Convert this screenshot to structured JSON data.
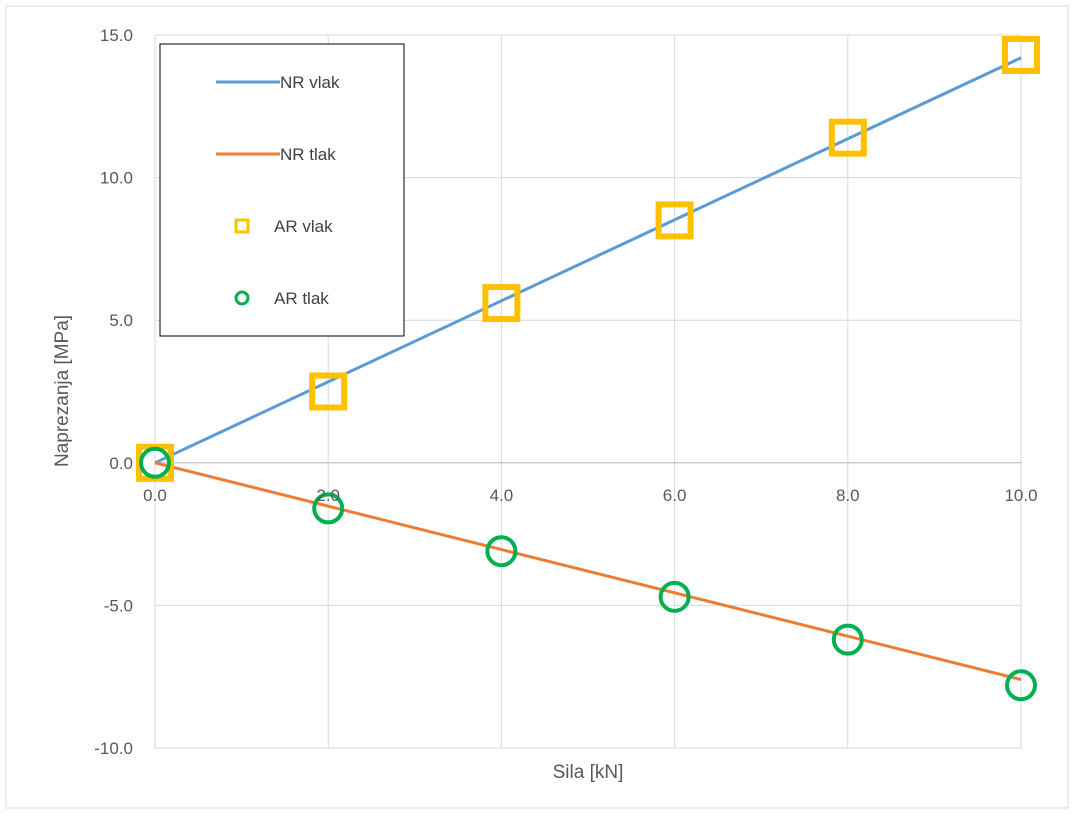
{
  "chart_data": {
    "type": "line",
    "xlabel": "Sila [kN]",
    "ylabel": "Naprezanja  [MPa]",
    "xlim": [
      0,
      10
    ],
    "ylim": [
      -10,
      15
    ],
    "x_ticks": [
      "0.0",
      "2.0",
      "4.0",
      "6.0",
      "8.0",
      "10.0"
    ],
    "y_ticks": [
      "-10.0",
      "-5.0",
      "0.0",
      "5.0",
      "10.0",
      "15.0"
    ],
    "x_tick_values": [
      0,
      2,
      4,
      6,
      8,
      10
    ],
    "y_tick_values": [
      -10,
      -5,
      0,
      5,
      10,
      15
    ],
    "grid": true,
    "legend_position": "top-left",
    "series": [
      {
        "name": "NR vlak",
        "kind": "line",
        "color": "#5B9BD5",
        "x": [
          0,
          10
        ],
        "y": [
          0,
          14.2
        ]
      },
      {
        "name": "NR tlak",
        "kind": "line",
        "color": "#ED7D31",
        "x": [
          0,
          10
        ],
        "y": [
          0,
          -7.6
        ]
      },
      {
        "name": "AR vlak",
        "kind": "marker-square",
        "color": "#FFC000",
        "x": [
          0,
          2,
          4,
          6,
          8,
          10
        ],
        "y": [
          0,
          2.5,
          5.6,
          8.5,
          11.4,
          14.3
        ]
      },
      {
        "name": "AR tlak",
        "kind": "marker-circle",
        "color": "#00B050",
        "x": [
          0,
          2,
          4,
          6,
          8,
          10
        ],
        "y": [
          0,
          -1.6,
          -3.1,
          -4.7,
          -6.2,
          -7.8
        ]
      }
    ]
  }
}
